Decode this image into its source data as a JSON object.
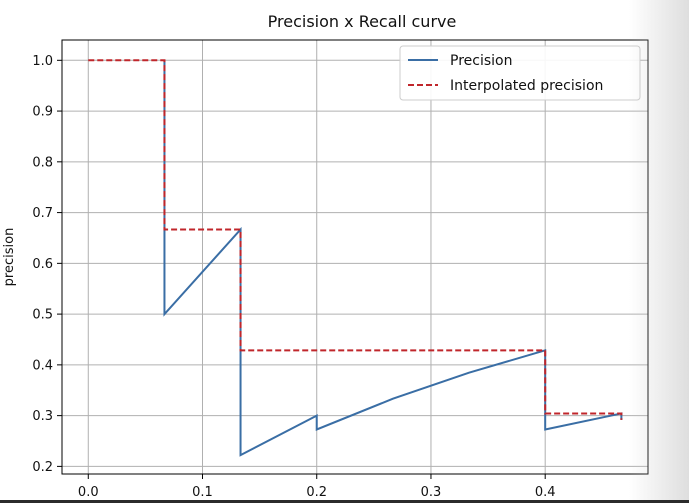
{
  "colors": {
    "precision": "#3a6ea5",
    "interpolated": "#c0262b",
    "grid": "#b0b0b0",
    "axes": "#000000"
  },
  "chart_data": {
    "type": "line",
    "title": "Precision x Recall curve",
    "xlabel": "",
    "ylabel": "precision",
    "xlim": [
      -0.023,
      0.49
    ],
    "ylim": [
      0.185,
      1.04
    ],
    "xticks": [
      0.0,
      0.1,
      0.2,
      0.3,
      0.4
    ],
    "xtick_labels": [
      "0.0",
      "0.1",
      "0.2",
      "0.3",
      "0.4"
    ],
    "yticks": [
      0.2,
      0.3,
      0.4,
      0.5,
      0.6,
      0.7,
      0.8,
      0.9,
      1.0
    ],
    "ytick_labels": [
      "0.2",
      "0.3",
      "0.4",
      "0.5",
      "0.6",
      "0.7",
      "0.8",
      "0.9",
      "1.0"
    ],
    "grid": true,
    "legend_position": "top-right",
    "series": [
      {
        "name": "Precision",
        "style": "solid",
        "x": [
          0.0667,
          0.0667,
          0.0667,
          0.1333,
          0.1333,
          0.2,
          0.2,
          0.2667,
          0.3333,
          0.4,
          0.4,
          0.4667,
          0.4667
        ],
        "y": [
          1.0,
          0.6667,
          0.5,
          0.6667,
          0.2222,
          0.3,
          0.2727,
          0.3333,
          0.3846,
          0.4286,
          0.2727,
          0.3043,
          0.2917
        ]
      },
      {
        "name": "Interpolated precision",
        "style": "dashed",
        "x": [
          0.0,
          0.0667,
          0.0667,
          0.1333,
          0.1333,
          0.4,
          0.4,
          0.4667,
          0.4667
        ],
        "y": [
          1.0,
          1.0,
          0.6667,
          0.6667,
          0.4286,
          0.4286,
          0.3043,
          0.3043,
          0.2917
        ]
      }
    ]
  }
}
